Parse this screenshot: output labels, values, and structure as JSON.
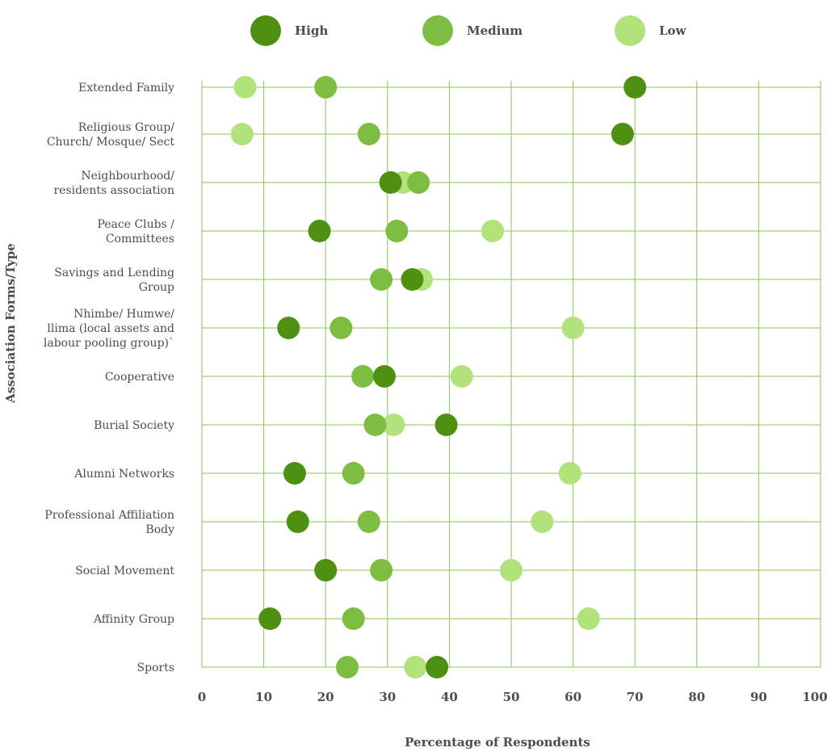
{
  "chart_data": {
    "type": "scatter",
    "xlabel": "Percentage of Respondents",
    "ylabel": "Association Forms/Type",
    "xlim": [
      0,
      100
    ],
    "xticks": [
      0,
      10,
      20,
      30,
      40,
      50,
      60,
      70,
      80,
      90,
      100
    ],
    "grid": true,
    "legend_position": "top",
    "categories": [
      [
        "Extended Family"
      ],
      [
        "Religious Group/",
        "Church/ Mosque/ Sect"
      ],
      [
        "Neighbourhood/",
        "residents association"
      ],
      [
        "Peace Clubs /",
        "Committees"
      ],
      [
        "Savings and Lending",
        "Group"
      ],
      [
        "Nhimbe/ Humwe/",
        "llima (local assets and",
        "labour pooling group)`"
      ],
      [
        "Cooperative"
      ],
      [
        "Burial Society"
      ],
      [
        "Alumni Networks"
      ],
      [
        "Professional Affiliation",
        "Body"
      ],
      [
        "Social Movement"
      ],
      [
        "Affinity Group"
      ],
      [
        "Sports"
      ]
    ],
    "series": [
      {
        "name": "High",
        "color": "#4e9112",
        "values": [
          70,
          68,
          30.5,
          19,
          34,
          14,
          29.5,
          39.5,
          15,
          15.5,
          20,
          11,
          38
        ]
      },
      {
        "name": "Medium",
        "color": "#7dbd42",
        "values": [
          20,
          27,
          35,
          31.5,
          29,
          22.5,
          26,
          28,
          24.5,
          27,
          29,
          24.5,
          23.5
        ]
      },
      {
        "name": "Low",
        "color": "#b2e27a",
        "values": [
          7,
          6.5,
          32.5,
          47,
          35.5,
          60,
          42,
          31,
          59.5,
          55,
          50,
          62.5,
          34.5
        ]
      }
    ]
  }
}
